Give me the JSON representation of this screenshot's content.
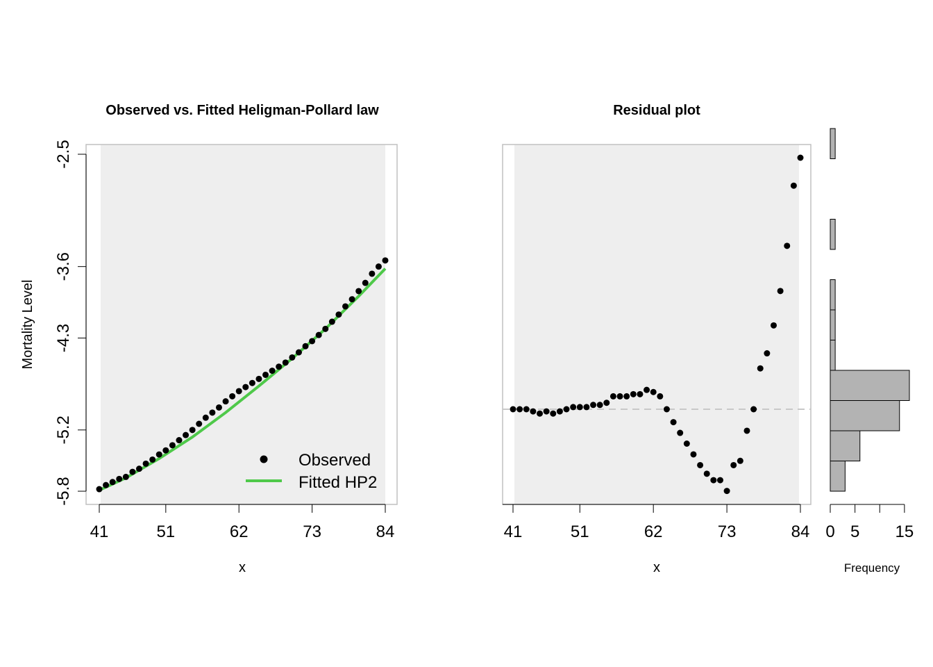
{
  "chart_data": [
    {
      "type": "scatter",
      "title": "Observed vs. Fitted Heligman-Pollard law",
      "xlabel": "x",
      "ylabel": "Mortality Level",
      "xlim": [
        41,
        84
      ],
      "ylim": [
        -5.8,
        -2.5
      ],
      "xticks": [
        "41",
        "51",
        "62",
        "73",
        "84"
      ],
      "yticks": [
        "-2.5",
        "-3.6",
        "-4.3",
        "-5.2",
        "-5.8"
      ],
      "legend": {
        "position": "bottom-right",
        "entries": [
          "Observed",
          "Fitted HP2"
        ]
      },
      "colors": {
        "observed": "#000000",
        "fitted": "#4fc94a",
        "band": "#eeeeee"
      },
      "series": [
        {
          "name": "Observed",
          "x": [
            41,
            42,
            43,
            44,
            45,
            46,
            47,
            48,
            49,
            50,
            51,
            52,
            53,
            54,
            55,
            56,
            57,
            58,
            59,
            60,
            61,
            62,
            63,
            64,
            65,
            66,
            67,
            68,
            69,
            70,
            71,
            72,
            73,
            74,
            75,
            76,
            77,
            78,
            79,
            80,
            81,
            82,
            83,
            84
          ],
          "values": [
            -5.78,
            -5.74,
            -5.71,
            -5.68,
            -5.66,
            -5.61,
            -5.58,
            -5.53,
            -5.49,
            -5.44,
            -5.4,
            -5.35,
            -5.3,
            -5.25,
            -5.2,
            -5.14,
            -5.08,
            -5.03,
            -4.98,
            -4.92,
            -4.87,
            -4.82,
            -4.78,
            -4.74,
            -4.7,
            -4.66,
            -4.62,
            -4.58,
            -4.54,
            -4.49,
            -4.44,
            -4.38,
            -4.33,
            -4.27,
            -4.21,
            -4.14,
            -4.07,
            -3.99,
            -3.92,
            -3.84,
            -3.76,
            -3.67,
            -3.6,
            -3.54
          ]
        },
        {
          "name": "Fitted HP2",
          "x": [
            41,
            45,
            50,
            55,
            60,
            65,
            70,
            75,
            80,
            84
          ],
          "values": [
            -5.79,
            -5.67,
            -5.48,
            -5.27,
            -5.03,
            -4.77,
            -4.5,
            -4.21,
            -3.89,
            -3.62
          ]
        }
      ]
    },
    {
      "type": "scatter",
      "title": "Residual plot",
      "xlabel": "x",
      "ylabel": "",
      "xlim": [
        41,
        84
      ],
      "ylim": [
        -0.45,
        1.2
      ],
      "xticks": [
        "41",
        "51",
        "62",
        "73",
        "84"
      ],
      "reference_line": 0,
      "colors": {
        "points": "#000000",
        "refline": "#c8c8c8",
        "band": "#eeeeee"
      },
      "series": [
        {
          "x": [
            41,
            42,
            43,
            44,
            45,
            46,
            47,
            48,
            49,
            50,
            51,
            52,
            53,
            54,
            55,
            56,
            57,
            58,
            59,
            60,
            61,
            62,
            63,
            64,
            65,
            66,
            67,
            68,
            69,
            70,
            71,
            72,
            73,
            74,
            75,
            76,
            77,
            78,
            79,
            80,
            81,
            82,
            83,
            84
          ],
          "values": [
            0.0,
            0.0,
            0.0,
            -0.01,
            -0.02,
            -0.01,
            -0.02,
            -0.01,
            0.0,
            0.01,
            0.01,
            0.01,
            0.02,
            0.02,
            0.03,
            0.06,
            0.06,
            0.06,
            0.07,
            0.07,
            0.09,
            0.08,
            0.06,
            0.0,
            -0.06,
            -0.11,
            -0.16,
            -0.21,
            -0.26,
            -0.3,
            -0.33,
            -0.33,
            -0.38,
            -0.26,
            -0.24,
            -0.1,
            0.0,
            0.19,
            0.26,
            0.39,
            0.55,
            0.76,
            1.04,
            1.17
          ]
        }
      ]
    },
    {
      "type": "bar",
      "orientation": "horizontal",
      "xlabel": "Frequency",
      "xticks": [
        "0",
        "5",
        "15"
      ],
      "values": [
        3,
        6,
        14,
        16,
        1,
        1,
        1,
        0,
        1,
        0,
        0,
        1
      ],
      "colors": {
        "fill": "#b3b3b3",
        "stroke": "#000000"
      }
    }
  ]
}
